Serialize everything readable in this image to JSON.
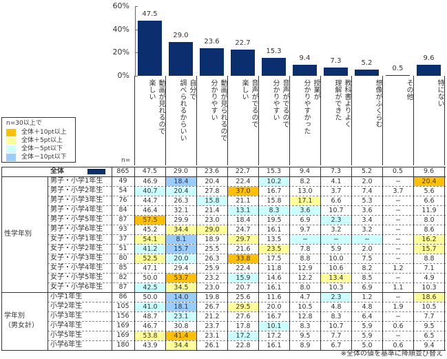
{
  "chart_data": {
    "type": "bar",
    "ylim": [
      0,
      60
    ],
    "yticks": [
      "0%",
      "20%",
      "40%",
      "60%"
    ],
    "ytick_values": [
      0,
      20,
      40,
      60
    ],
    "categories": [
      "動画が見れるので\n楽しい",
      "自分で\n調べられるからいい",
      "動画が見られるので\n分かりやすい",
      "音声がでるので\n楽しい",
      "音声がでるので\n分かりやすい",
      "授業が\n分かりやすかった",
      "教科書よりよく\n理解ができた",
      "想像がふくらむ",
      "その他",
      "特にない"
    ],
    "values": [
      47.5,
      29.0,
      23.6,
      22.7,
      15.3,
      9.4,
      7.3,
      5.2,
      0.5,
      9.6
    ],
    "value_labels": [
      "47.5",
      "29.0",
      "23.6",
      "22.7",
      "15.3",
      "9.4",
      "7.3",
      "5.2",
      "0.5",
      "9.6"
    ],
    "bar_color": "#0b2f6e"
  },
  "legend": {
    "title": "n=30以上で",
    "items": [
      {
        "label": "全体＋10pt以上",
        "color": "#ffc000"
      },
      {
        "label": "全体＋5pt以上",
        "color": "#ffff99"
      },
      {
        "label": "全体－5pt以下",
        "color": "#ccffff"
      },
      {
        "label": "全体－10pt以下",
        "color": "#99ccff"
      }
    ]
  },
  "n_label": "n=",
  "total": {
    "label": "全体",
    "n": "865",
    "values": [
      "47.5",
      "29.0",
      "23.6",
      "22.7",
      "15.3",
      "9.4",
      "7.3",
      "5.2",
      "0.5",
      "9.6"
    ]
  },
  "groups": [
    {
      "label": "性学年別",
      "rows": [
        {
          "label": "男子・小学1年生",
          "n": "49",
          "values": [
            "46.9",
            "18.4",
            "20.4",
            "22.4",
            "10.2",
            "8.2",
            "4.1",
            "2.0",
            "−",
            "20.4"
          ],
          "hl": [
            "",
            "b",
            "",
            "",
            "c",
            "",
            "",
            "",
            "",
            "o"
          ]
        },
        {
          "label": "男子・小学2年生",
          "n": "54",
          "values": [
            "40.7",
            "20.4",
            "27.8",
            "37.0",
            "16.7",
            "13.0",
            "3.7",
            "7.4",
            "3.7",
            "5.6"
          ],
          "hl": [
            "c",
            "c",
            "",
            "o",
            "",
            "",
            "",
            "",
            "",
            ""
          ]
        },
        {
          "label": "男子・小学3年生",
          "n": "76",
          "values": [
            "44.7",
            "26.3",
            "15.8",
            "21.1",
            "15.8",
            "17.1",
            "6.6",
            "5.3",
            "−",
            "6.6"
          ],
          "hl": [
            "",
            "",
            "c",
            "",
            "",
            "y",
            "",
            "",
            "",
            ""
          ]
        },
        {
          "label": "男子・小学4年生",
          "n": "84",
          "values": [
            "46.4",
            "32.1",
            "21.4",
            "13.1",
            "8.3",
            "3.6",
            "10.7",
            "3.6",
            "−",
            "11.9"
          ],
          "hl": [
            "",
            "",
            "",
            "c",
            "c",
            "c",
            "",
            "",
            "",
            ""
          ]
        },
        {
          "label": "男子・小学5年生",
          "n": "87",
          "values": [
            "57.5",
            "29.9",
            "23.0",
            "18.4",
            "19.5",
            "6.9",
            "2.3",
            "3.4",
            "−",
            "8.0"
          ],
          "hl": [
            "o",
            "",
            "",
            "",
            "",
            "",
            "c",
            "",
            "",
            ""
          ]
        },
        {
          "label": "男子・小学6年生",
          "n": "93",
          "values": [
            "45.2",
            "34.4",
            "29.0",
            "24.7",
            "16.1",
            "9.7",
            "3.2",
            "3.2",
            "−",
            "8.6"
          ],
          "hl": [
            "",
            "y",
            "y",
            "",
            "",
            "",
            "",
            "",
            "",
            ""
          ]
        },
        {
          "label": "女子・小学1年生",
          "n": "37",
          "values": [
            "54.1",
            "8.1",
            "18.9",
            "29.7",
            "13.5",
            "−",
            "−",
            "−",
            "−",
            "16.2"
          ],
          "hl": [
            "y",
            "b",
            "",
            "y",
            "",
            "c",
            "c",
            "c",
            "",
            "y"
          ]
        },
        {
          "label": "女子・小学2年生",
          "n": "51",
          "values": [
            "41.2",
            "15.7",
            "25.5",
            "21.6",
            "23.5",
            "7.8",
            "5.9",
            "2.0",
            "−",
            "15.7"
          ],
          "hl": [
            "c",
            "b",
            "",
            "",
            "y",
            "",
            "",
            "",
            "",
            "y"
          ]
        },
        {
          "label": "女子・小学3年生",
          "n": "80",
          "values": [
            "52.5",
            "20.0",
            "26.3",
            "33.8",
            "17.5",
            "8.8",
            "10.0",
            "7.5",
            "−",
            "8.8"
          ],
          "hl": [
            "y",
            "c",
            "",
            "o",
            "",
            "",
            "",
            "",
            "",
            ""
          ]
        },
        {
          "label": "女子・小学4年生",
          "n": "85",
          "values": [
            "47.1",
            "29.4",
            "25.9",
            "22.4",
            "11.8",
            "12.9",
            "10.6",
            "8.2",
            "1.2",
            "7.1"
          ],
          "hl": [
            "",
            "",
            "",
            "",
            "",
            "",
            "",
            "",
            "",
            ""
          ]
        },
        {
          "label": "女子・小学5年生",
          "n": "82",
          "values": [
            "50.0",
            "53.7",
            "23.2",
            "15.9",
            "14.6",
            "12.2",
            "13.4",
            "8.5",
            "−",
            "4.9"
          ],
          "hl": [
            "",
            "o",
            "",
            "c",
            "",
            "",
            "y",
            "",
            "",
            ""
          ]
        },
        {
          "label": "女子・小学6年生",
          "n": "87",
          "values": [
            "42.5",
            "34.5",
            "23.0",
            "20.7",
            "16.1",
            "8.0",
            "10.3",
            "6.9",
            "1.1",
            "10.3"
          ],
          "hl": [
            "c",
            "y",
            "",
            "",
            "",
            "",
            "",
            "",
            "",
            ""
          ]
        }
      ]
    },
    {
      "label": "学年別\n（男女計）",
      "rows": [
        {
          "label": "小学1年生",
          "n": "86",
          "values": [
            "50.0",
            "14.0",
            "19.8",
            "25.6",
            "11.6",
            "4.7",
            "2.3",
            "1.2",
            "−",
            "18.6"
          ],
          "hl": [
            "",
            "b",
            "",
            "",
            "",
            "",
            "c",
            "",
            "",
            "y"
          ]
        },
        {
          "label": "小学2年生",
          "n": "105",
          "values": [
            "41.0",
            "18.1",
            "26.7",
            "29.5",
            "20.0",
            "10.5",
            "4.8",
            "4.8",
            "1.9",
            "10.5"
          ],
          "hl": [
            "c",
            "b",
            "",
            "y",
            "",
            "",
            "",
            "",
            "",
            ""
          ]
        },
        {
          "label": "小学3年生",
          "n": "156",
          "values": [
            "48.7",
            "23.1",
            "21.2",
            "27.6",
            "16.7",
            "12.8",
            "8.3",
            "6.4",
            "−",
            "7.7"
          ],
          "hl": [
            "",
            "c",
            "",
            "",
            "",
            "",
            "",
            "",
            "",
            ""
          ]
        },
        {
          "label": "小学4年生",
          "n": "169",
          "values": [
            "46.7",
            "30.8",
            "23.7",
            "17.8",
            "10.1",
            "8.3",
            "10.7",
            "5.9",
            "0.6",
            "9.5"
          ],
          "hl": [
            "",
            "",
            "",
            "",
            "c",
            "",
            "",
            "",
            "",
            ""
          ]
        },
        {
          "label": "小学5年生",
          "n": "169",
          "values": [
            "53.8",
            "41.4",
            "23.1",
            "17.2",
            "17.2",
            "9.5",
            "7.7",
            "5.9",
            "−",
            "6.5"
          ],
          "hl": [
            "y",
            "o",
            "",
            "c",
            "",
            "",
            "",
            "",
            "",
            ""
          ]
        },
        {
          "label": "小学6年生",
          "n": "180",
          "values": [
            "43.9",
            "34.4",
            "26.1",
            "22.8",
            "16.1",
            "8.9",
            "6.7",
            "5.0",
            "0.6",
            "9.4"
          ],
          "hl": [
            "",
            "y",
            "",
            "",
            "",
            "",
            "",
            "",
            "",
            ""
          ]
        }
      ]
    }
  ],
  "footnote": "※全体の値を基準に降順並び替え"
}
